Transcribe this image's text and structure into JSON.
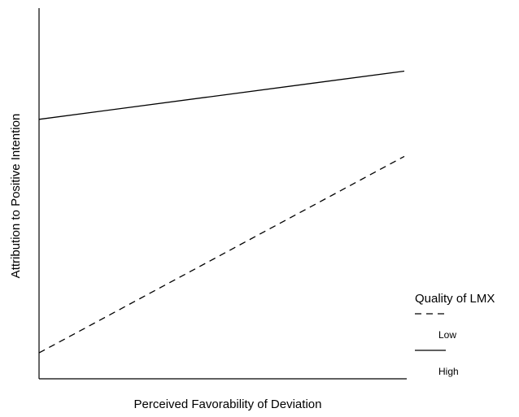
{
  "chart_data": {
    "type": "line",
    "title": "",
    "xlabel": "Perceived Favorability of Deviation",
    "ylabel": "Attribution to Positive Intention",
    "x": [
      0,
      1
    ],
    "xlim": [
      0,
      1
    ],
    "ylim": [
      0,
      1
    ],
    "grid": false,
    "legend": {
      "title": "Quality of LMX",
      "placement": "right"
    },
    "series": [
      {
        "name": "Low",
        "style": "dashed",
        "values": [
          0.07,
          0.6
        ]
      },
      {
        "name": "High",
        "style": "solid",
        "values": [
          0.7,
          0.83
        ]
      }
    ]
  }
}
